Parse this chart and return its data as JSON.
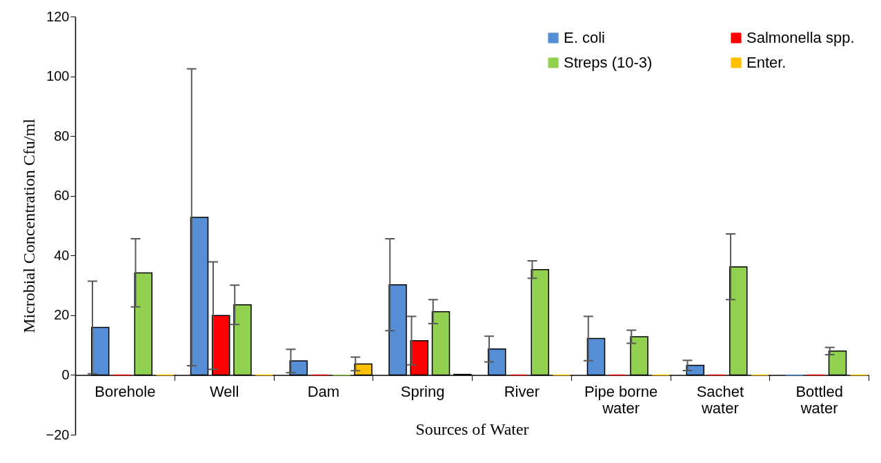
{
  "chart_data": {
    "type": "bar",
    "xlabel": "Sources of Water",
    "ylabel": "Microbial Concentration Cfu/ml",
    "categories": [
      "Borehole",
      "Well",
      "Dam",
      "Spring",
      "River",
      "Pipe borne water",
      "Sachet water",
      "Bottled water"
    ],
    "series": [
      {
        "name": "E. coli",
        "color": "#558ed5",
        "values": [
          15.9,
          52.8,
          4.7,
          30.2,
          8.7,
          12.2,
          3.2,
          0
        ],
        "errors": [
          15.5,
          49.7,
          3.9,
          15.4,
          4.3,
          7.4,
          1.7,
          null
        ]
      },
      {
        "name": "Salmonella spp.",
        "color": "#ff0000",
        "values": [
          0,
          19.9,
          0,
          11.5,
          0,
          0,
          0,
          0
        ],
        "errors": [
          null,
          18,
          null,
          8.1,
          null,
          null,
          null,
          null
        ]
      },
      {
        "name": "Streps (10-3)",
        "color": "#92d050",
        "values": [
          34.2,
          23.5,
          0,
          21.2,
          35.3,
          12.8,
          36.2,
          8.0
        ],
        "errors": [
          11.4,
          6.6,
          null,
          4,
          2.9,
          2.2,
          11,
          1.2
        ]
      },
      {
        "name": "Enter.",
        "color": "#ffc000",
        "values": [
          0,
          0,
          3.7,
          0.2,
          0,
          0,
          0,
          0
        ],
        "errors": [
          null,
          null,
          2.3,
          null,
          null,
          null,
          null,
          null
        ]
      }
    ],
    "ylim": [
      -20,
      120
    ],
    "yticks": [
      -20,
      0,
      20,
      40,
      60,
      80,
      100,
      120
    ],
    "grid": false,
    "legend": "top right"
  }
}
